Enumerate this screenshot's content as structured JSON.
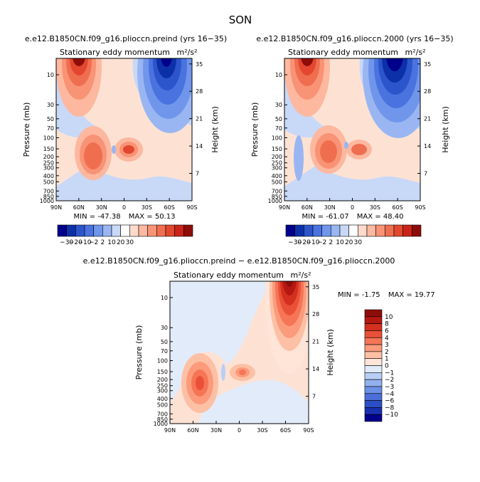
{
  "figure_title": "SON",
  "chart_data": [
    {
      "type": "heatmap",
      "title": "e.e12.B1850CN.f09_g16.plioccn.preind (yrs 16−35)",
      "subtitle": "Stationary eddy momentum",
      "units": "m²/s²",
      "xlabel": "",
      "ylabel": "Pressure (mb)",
      "ylabel_right": "Height (km)",
      "xticks": [
        "90N",
        "60N",
        "30N",
        "0",
        "30S",
        "60S",
        "90S"
      ],
      "yticks": [
        "10",
        "30",
        "50",
        "70",
        "100",
        "150",
        "200",
        "250",
        "300",
        "400",
        "500",
        "700",
        "850",
        "1000"
      ],
      "height_ticks": [
        "35",
        "28",
        "21",
        "14",
        "7"
      ],
      "stats": {
        "min_label": "MIN = ",
        "min": "-47.38",
        "max_label": "MAX = ",
        "max": "50.13"
      },
      "contour_levels": [
        -30,
        -20,
        -10,
        -2,
        2,
        10,
        20,
        30
      ],
      "features": [
        {
          "lat": 60,
          "p": 12,
          "value": 50.13
        },
        {
          "lat": -60,
          "p": 12,
          "value": -47.38
        },
        {
          "lat": 38,
          "p": 200,
          "value": 20
        },
        {
          "lat": -3,
          "p": 150,
          "value": 20
        }
      ]
    },
    {
      "type": "heatmap",
      "title": "e.e12.B1850CN.f09_g16.plioccn.2000 (yrs 16−35)",
      "subtitle": "Stationary eddy momentum",
      "units": "m²/s²",
      "xlabel": "",
      "ylabel": "Pressure (mb)",
      "ylabel_right": "Height (km)",
      "xticks": [
        "90N",
        "60N",
        "30N",
        "0",
        "30S",
        "60S",
        "90S"
      ],
      "yticks": [
        "10",
        "30",
        "50",
        "70",
        "100",
        "150",
        "200",
        "250",
        "300",
        "400",
        "500",
        "700",
        "850",
        "1000"
      ],
      "height_ticks": [
        "35",
        "28",
        "21",
        "14",
        "7"
      ],
      "stats": {
        "min_label": "MIN = ",
        "min": "-61.07",
        "max_label": "MAX = ",
        "max": "48.40"
      },
      "contour_levels": [
        -30,
        -20,
        -10,
        -2,
        2,
        10,
        20,
        30
      ],
      "features": [
        {
          "lat": 60,
          "p": 12,
          "value": 48.4
        },
        {
          "lat": -60,
          "p": 12,
          "value": -61.07
        },
        {
          "lat": 38,
          "p": 200,
          "value": 20
        },
        {
          "lat": -3,
          "p": 150,
          "value": 20
        }
      ]
    },
    {
      "type": "heatmap",
      "title": "e.e12.B1850CN.f09_g16.plioccn.preind − e.e12.B1850CN.f09_g16.plioccn.2000",
      "subtitle": "Stationary eddy momentum",
      "units": "m²/s²",
      "xlabel": "",
      "ylabel": "Pressure (mb)",
      "ylabel_right": "Height (km)",
      "xticks": [
        "90N",
        "60N",
        "30N",
        "0",
        "30S",
        "60S",
        "90S"
      ],
      "yticks": [
        "10",
        "30",
        "50",
        "70",
        "100",
        "150",
        "200",
        "250",
        "300",
        "400",
        "500",
        "700",
        "850",
        "1000"
      ],
      "height_ticks": [
        "35",
        "28",
        "21",
        "14",
        "7"
      ],
      "stats": {
        "min_label": "MIN = ",
        "min": "-1.75",
        "max_label": "MAX = ",
        "max": "19.77"
      },
      "contour_levels": [
        -10,
        -8,
        -6,
        -4,
        -3,
        -2,
        -1,
        0,
        1,
        2,
        3,
        4,
        6,
        8,
        10
      ],
      "features": [
        {
          "lat": -65,
          "p": 10,
          "value": 19.77
        },
        {
          "lat": 55,
          "p": 230,
          "value": 6
        },
        {
          "lat": -3,
          "p": 150,
          "value": 3
        },
        {
          "lat": 22,
          "p": 160,
          "value": -1.75
        }
      ]
    }
  ],
  "colorbar_horizontal": {
    "colors": [
      "#00008c",
      "#0c30a8",
      "#2d55cb",
      "#4a73e0",
      "#7096eb",
      "#99b6f2",
      "#c8d8f7",
      "#ffffff",
      "#ffdacb",
      "#fdb89f",
      "#f99376",
      "#f06e50",
      "#e3472f",
      "#c9231a",
      "#8f0d08"
    ],
    "labels": [
      "−30",
      "−20",
      "−10",
      "−2",
      "2",
      "10",
      "20",
      "30"
    ]
  },
  "colorbar_vertical": {
    "colors": [
      "#8f0d08",
      "#b51811",
      "#d3301f",
      "#ea5038",
      "#f57556",
      "#fb9b7c",
      "#fdc0a5",
      "#ffe4d8",
      "#e1ebfa",
      "#b9cef4",
      "#92b0ee",
      "#6d91e6",
      "#4a6fd8",
      "#2c4fc8",
      "#1930b0",
      "#00008c"
    ],
    "labels": [
      "10",
      "8",
      "6",
      "4",
      "3",
      "2",
      "1",
      "0",
      "−1",
      "−2",
      "−3",
      "−4",
      "−6",
      "−8",
      "−10"
    ]
  }
}
